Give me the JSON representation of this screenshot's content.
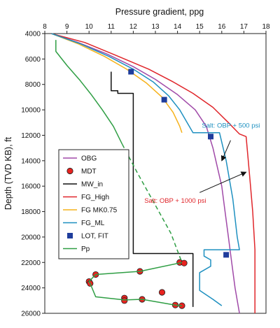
{
  "chart_data": {
    "type": "line",
    "title": "",
    "xlabel": "Pressure gradient, ppg",
    "ylabel": "Depth (TVD KB), ft",
    "xlim": [
      8,
      18
    ],
    "ylim": [
      26000,
      4000
    ],
    "x_axis_position": "top",
    "y_inverted": true,
    "x_ticks": [
      "8",
      "9",
      "10",
      "11",
      "12",
      "13",
      "14",
      "15",
      "16",
      "17",
      "18"
    ],
    "y_ticks": [
      "4000",
      "6000",
      "8000",
      "10000",
      "12000",
      "14000",
      "16000",
      "18000",
      "20000",
      "22000",
      "24000",
      "26000"
    ],
    "grid": false,
    "legend_position": "left-middle",
    "series": [
      {
        "name": "OBG",
        "color": "#a04aa8",
        "style": "solid",
        "marker": "none",
        "points": [
          [
            8.3,
            4000
          ],
          [
            9.5,
            4700
          ],
          [
            10.8,
            5600
          ],
          [
            12.0,
            6600
          ],
          [
            13.0,
            7600
          ],
          [
            14.0,
            8800
          ],
          [
            14.8,
            10000
          ],
          [
            15.3,
            11300
          ],
          [
            15.6,
            13000
          ],
          [
            15.8,
            14500
          ],
          [
            16.0,
            16000
          ],
          [
            16.15,
            18000
          ],
          [
            16.3,
            20000
          ],
          [
            16.45,
            22000
          ],
          [
            16.6,
            24000
          ],
          [
            16.8,
            26000
          ]
        ]
      },
      {
        "name": "MDT",
        "color": "#e8231f",
        "style": "none",
        "marker": "circle",
        "points": [
          [
            14.1,
            22000
          ],
          [
            14.3,
            22050
          ],
          [
            12.3,
            22700
          ],
          [
            10.3,
            22950
          ],
          [
            10.0,
            23500
          ],
          [
            10.05,
            23650
          ],
          [
            13.3,
            24350
          ],
          [
            11.6,
            24800
          ],
          [
            12.4,
            24900
          ],
          [
            11.6,
            25000
          ],
          [
            13.9,
            25350
          ],
          [
            14.2,
            25400
          ]
        ]
      },
      {
        "name": "MW_in",
        "color": "#111111",
        "style": "solid",
        "marker": "none",
        "points": [
          [
            11,
            7000
          ],
          [
            11,
            8500
          ],
          [
            11.3,
            8500
          ],
          [
            11.3,
            8700
          ],
          [
            12,
            8700
          ],
          [
            12,
            21300
          ],
          [
            14.7,
            21300
          ],
          [
            14.7,
            25500
          ]
        ]
      },
      {
        "name": "FG_High",
        "color": "#e0262b",
        "style": "solid",
        "marker": "none",
        "points": [
          [
            8.3,
            4000
          ],
          [
            9.8,
            4700
          ],
          [
            11.2,
            5700
          ],
          [
            12.7,
            6800
          ],
          [
            13.8,
            7800
          ],
          [
            14.7,
            8700
          ],
          [
            15.6,
            9800
          ],
          [
            16.3,
            11000
          ],
          [
            16.8,
            11900
          ],
          [
            17.1,
            12100
          ],
          [
            17.2,
            14000
          ],
          [
            17.3,
            16000
          ],
          [
            17.4,
            18000
          ],
          [
            17.45,
            19500
          ],
          [
            17.5,
            21000
          ],
          [
            17.5,
            26000
          ]
        ]
      },
      {
        "name": "FG MK0.75",
        "color": "#f6b21b",
        "style": "solid",
        "marker": "none",
        "points": [
          [
            8.3,
            4000
          ],
          [
            9.5,
            4800
          ],
          [
            10.7,
            5800
          ],
          [
            11.7,
            6800
          ],
          [
            12.6,
            7900
          ],
          [
            13.3,
            9000
          ],
          [
            13.8,
            10200
          ],
          [
            14.1,
            11300
          ],
          [
            14.2,
            11800
          ]
        ]
      },
      {
        "name": "FG_ML",
        "color": "#1e90c0",
        "style": "solid",
        "marker": "none",
        "points": [
          [
            8.3,
            4000
          ],
          [
            9.6,
            4800
          ],
          [
            10.9,
            5800
          ],
          [
            12.0,
            6800
          ],
          [
            12.9,
            7800
          ],
          [
            13.6,
            8900
          ],
          [
            14.1,
            10000
          ],
          [
            14.5,
            11200
          ],
          [
            14.7,
            11800
          ],
          [
            15.9,
            11800
          ],
          [
            16.2,
            14000
          ],
          [
            16.5,
            17000
          ],
          [
            16.7,
            20000
          ],
          [
            16.8,
            21000
          ],
          [
            15.2,
            21000
          ],
          [
            15.2,
            21500
          ],
          [
            15.5,
            21800
          ],
          [
            15.5,
            22300
          ],
          [
            15.0,
            22800
          ],
          [
            15.0,
            24200
          ],
          [
            15.6,
            24900
          ],
          [
            16.0,
            25400
          ]
        ]
      },
      {
        "name": "LOT, FIT",
        "color": "#1f3d9c",
        "style": "none",
        "marker": "square",
        "points": [
          [
            11.9,
            7000
          ],
          [
            13.4,
            9200
          ],
          [
            15.5,
            12100
          ],
          [
            16.2,
            21400
          ]
        ]
      },
      {
        "name": "Pp",
        "color": "#2f9e44",
        "style": "solid",
        "marker": "none",
        "points": [
          [
            8.5,
            4500
          ],
          [
            8.5,
            5400
          ],
          [
            9.0,
            6500
          ],
          [
            9.6,
            7700
          ],
          [
            10.1,
            8800
          ],
          [
            10.6,
            10000
          ],
          [
            11.1,
            11300
          ],
          [
            11.5,
            12700
          ]
        ]
      },
      {
        "name": "Pp",
        "color": "#2f9e44",
        "style": "dashed",
        "marker": "none",
        "points": [
          [
            11.5,
            12700
          ],
          [
            12.2,
            15000
          ],
          [
            13.0,
            17500
          ],
          [
            13.7,
            19700
          ],
          [
            14.2,
            22000
          ]
        ]
      },
      {
        "name": "Pp",
        "color": "#2f9e44",
        "style": "solid",
        "marker": "none",
        "points": [
          [
            14.2,
            22000
          ],
          [
            12.3,
            22700
          ],
          [
            10.3,
            22950
          ],
          [
            10.0,
            23500
          ],
          [
            10.05,
            23650
          ],
          [
            10.3,
            24700
          ],
          [
            11.6,
            24950
          ],
          [
            12.4,
            24900
          ],
          [
            13.9,
            25350
          ],
          [
            14.2,
            25400
          ]
        ]
      }
    ],
    "legend": [
      {
        "label": "OBG",
        "color": "#a04aa8",
        "kind": "line"
      },
      {
        "label": "MDT",
        "color": "#e8231f",
        "kind": "circle"
      },
      {
        "label": "MW_in",
        "color": "#111111",
        "kind": "line"
      },
      {
        "label": "FG_High",
        "color": "#e0262b",
        "kind": "line"
      },
      {
        "label": "FG MK0.75",
        "color": "#f6b21b",
        "kind": "line"
      },
      {
        "label": "FG_ML",
        "color": "#1e90c0",
        "kind": "line"
      },
      {
        "label": "LOT, FIT",
        "color": "#1f3d9c",
        "kind": "square"
      },
      {
        "label": "Pp",
        "color": "#2f9e44",
        "kind": "line"
      }
    ],
    "annotations": [
      {
        "text": "Salt: OBP + 500 psi",
        "color": "#1e90c0",
        "at": [
          15.1,
          11400
        ],
        "arrow_from": [
          16.4,
          12400
        ],
        "arrow_to": [
          16.0,
          14000
        ]
      },
      {
        "text": "Salt: OBP + 1000 psi",
        "color": "#e0262b",
        "at": [
          12.5,
          17300
        ],
        "arrow_from": [
          15.0,
          16500
        ],
        "arrow_to": [
          17.1,
          14900
        ]
      }
    ]
  }
}
